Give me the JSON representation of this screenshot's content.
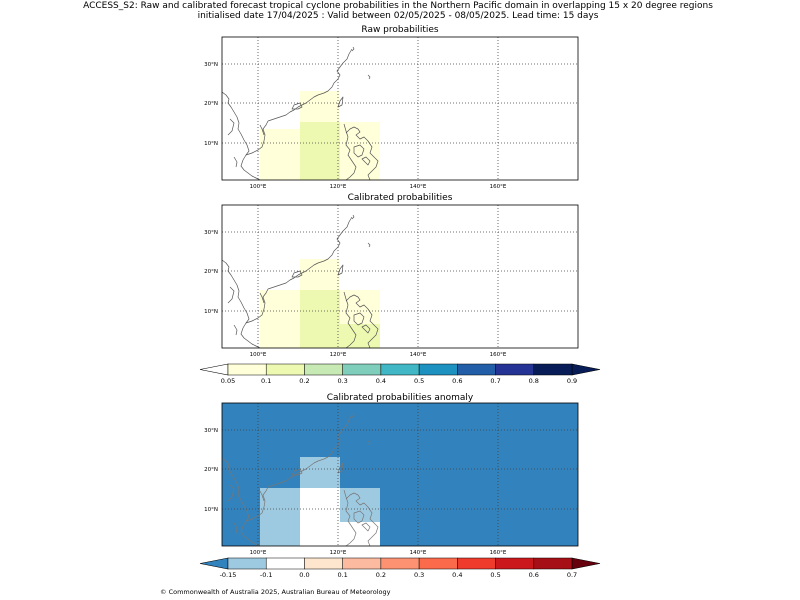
{
  "title": {
    "line1": "ACCESS_S2: Raw and calibrated forecast tropical cyclone probabilities in the Northern Pacific domain in overlapping 15 x 20 degree regions",
    "line2": "initialised date 17/04/2025 :  Valid between 02/05/2025 - 08/05/2025. Lead time: 15 days"
  },
  "map": {
    "lon_ticks": [
      "100°E",
      "120°E",
      "140°E",
      "160°E"
    ],
    "lat_ticks": [
      "30°N",
      "20°N",
      "10°N"
    ]
  },
  "panels": [
    {
      "title": "Raw probabilities"
    },
    {
      "title": "Calibrated probabilities"
    },
    {
      "title": "Calibrated probabilities anomaly"
    }
  ],
  "colorbars": {
    "probability": {
      "labels": [
        "0.05",
        "0.1",
        "0.2",
        "0.3",
        "0.4",
        "0.5",
        "0.6",
        "0.7",
        "0.8",
        "0.9"
      ],
      "colors": [
        "#ffffd9",
        "#edf8b1",
        "#c7e9b4",
        "#7fcdbb",
        "#41b6c4",
        "#1d91c0",
        "#225ea8",
        "#253494",
        "#081d58"
      ],
      "under_color": "#ffffff",
      "over_color": "#081d58"
    },
    "anomaly": {
      "labels": [
        "-0.15",
        "-0.1",
        "0.0",
        "0.1",
        "0.2",
        "0.3",
        "0.4",
        "0.5",
        "0.6",
        "0.7"
      ],
      "colors": [
        "#9ecae1",
        "#ffffff",
        "#fee6ce",
        "#fcbba1",
        "#fc9272",
        "#fb6a4a",
        "#ef3b2c",
        "#cb181d",
        "#a50f15"
      ],
      "under_color": "#3182bd",
      "over_color": "#67000d"
    }
  },
  "footer": {
    "credit": "© Commonwealth of Australia 2025, Australian Bureau of Meteorology"
  }
}
